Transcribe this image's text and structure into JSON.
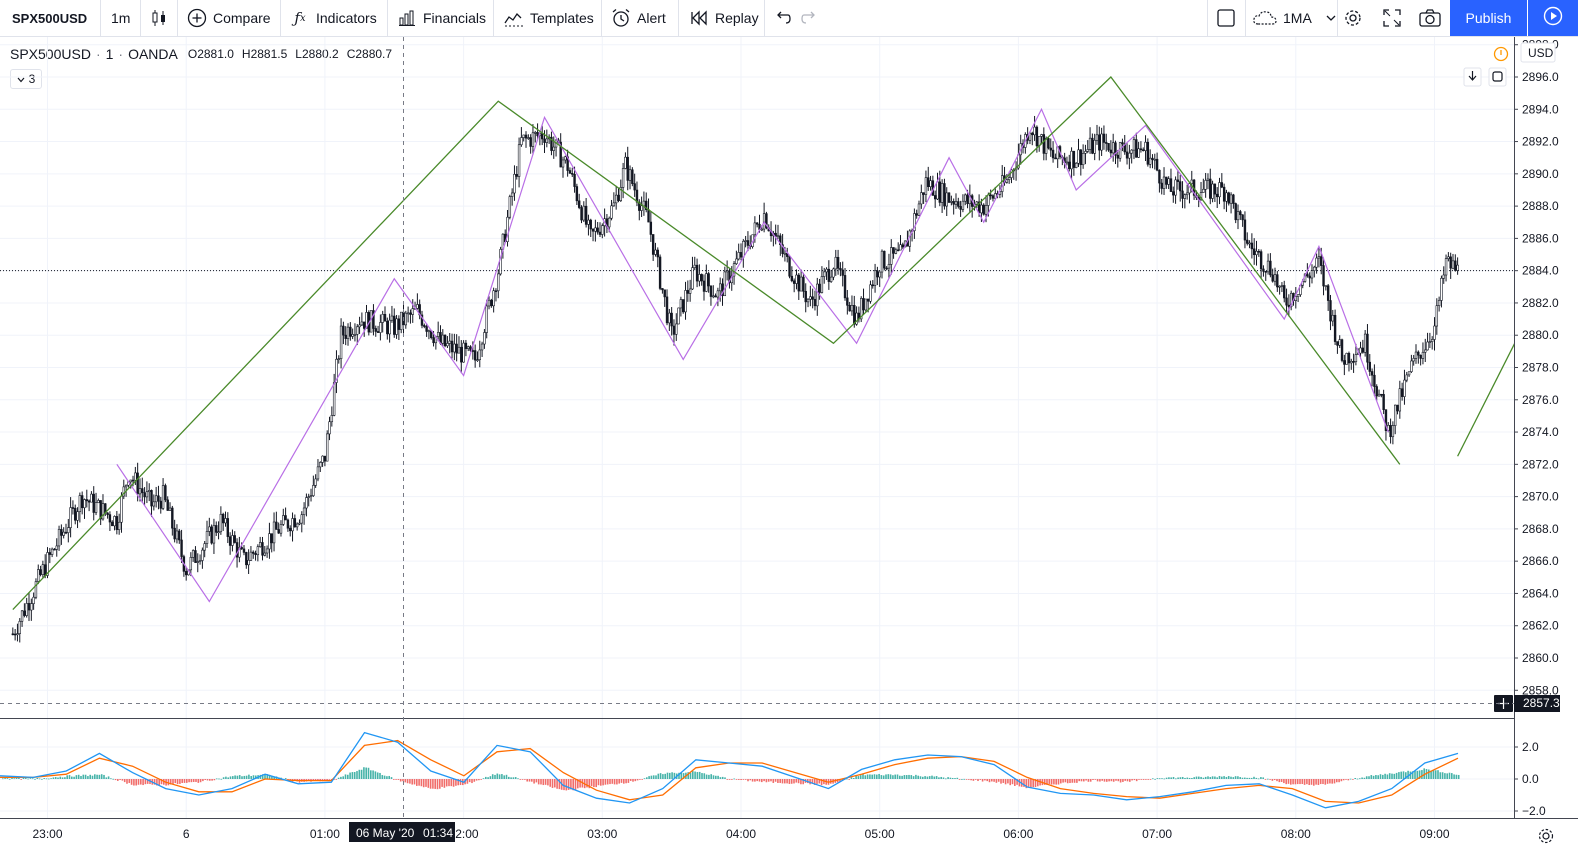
{
  "toolbar": {
    "symbol": "SPX500USD",
    "interval": "1m",
    "compare": "Compare",
    "indicators": "Indicators",
    "financials": "Financials",
    "templates": "Templates",
    "alert": "Alert",
    "replay": "Replay",
    "ma_label": "1MA",
    "publish": "Publish",
    "icons": [
      "candles-icon",
      "plus-circle-icon",
      "fx-icon",
      "financials-icon",
      "templates-icon",
      "alarm-icon",
      "replay-icon",
      "undo-icon",
      "redo-icon",
      "square-icon",
      "cloud-icon",
      "chevron-down-icon",
      "gear-icon",
      "fullscreen-icon",
      "camera-icon",
      "play-icon"
    ]
  },
  "legend": {
    "symbol": "SPX500USD",
    "dot1": "·",
    "interval": "1",
    "dot2": "·",
    "broker": "OANDA",
    "open": "O2881.0",
    "high": "H2881.5",
    "low": "L2880.2",
    "close": "C2880.7",
    "collapse_count": "3"
  },
  "price_axis": {
    "currency": "USD",
    "crosshair_price": "2857.3"
  },
  "time_axis": {
    "crosshair_time_label": "06 May '20",
    "crosshair_time_clock": "01:34"
  },
  "colors": {
    "bull": "#ffffff",
    "bear": "#131722",
    "zigzag_major": "#4a8a2a",
    "zigzag_minor": "#b96fe6",
    "macd_line": "#2196f3",
    "signal_line": "#ff6d00",
    "hist_pos": "#26a69a",
    "hist_neg": "#ef5350",
    "publish": "#2962ff"
  },
  "chart_data": [
    {
      "type": "candlestick",
      "symbol": "SPX500USD",
      "interval": "1m",
      "broker": "OANDA",
      "x_tick_labels": [
        "23:00",
        "6",
        "01:00",
        "02:00",
        "03:00",
        "04:00",
        "05:00",
        "06:00",
        "07:00",
        "08:00",
        "09:00"
      ],
      "y_tick_labels": [
        "2858.0",
        "2860.0",
        "2862.0",
        "2864.0",
        "2866.0",
        "2868.0",
        "2870.0",
        "2872.0",
        "2874.0",
        "2876.0",
        "2878.0",
        "2880.0",
        "2882.0",
        "2884.0",
        "2886.0",
        "2888.0",
        "2890.0",
        "2892.0",
        "2894.0",
        "2896.0",
        "2898.0"
      ],
      "ylim": [
        2857.3,
        2898.5
      ],
      "last_price_line": 2884.0,
      "price_anchors": [
        {
          "t": "22:45",
          "p": 2861.5
        },
        {
          "t": "23:00",
          "p": 2866.0
        },
        {
          "t": "23:15",
          "p": 2870.0
        },
        {
          "t": "23:30",
          "p": 2868.5
        },
        {
          "t": "23:35",
          "p": 2871.5
        },
        {
          "t": "23:45",
          "p": 2869.5
        },
        {
          "t": "23:50",
          "p": 2870.0
        },
        {
          "t": "00:00",
          "p": 2865.5
        },
        {
          "t": "00:15",
          "p": 2868.5
        },
        {
          "t": "00:25",
          "p": 2866.0
        },
        {
          "t": "00:40",
          "p": 2868.0
        },
        {
          "t": "00:50",
          "p": 2869.0
        },
        {
          "t": "01:00",
          "p": 2872.5
        },
        {
          "t": "01:07",
          "p": 2880.0
        },
        {
          "t": "01:15",
          "p": 2881.0
        },
        {
          "t": "01:30",
          "p": 2880.5
        },
        {
          "t": "01:40",
          "p": 2881.5
        },
        {
          "t": "01:50",
          "p": 2879.5
        },
        {
          "t": "02:05",
          "p": 2878.5
        },
        {
          "t": "02:15",
          "p": 2884.0
        },
        {
          "t": "02:25",
          "p": 2892.0
        },
        {
          "t": "02:35",
          "p": 2892.5
        },
        {
          "t": "02:45",
          "p": 2890.5
        },
        {
          "t": "02:55",
          "p": 2886.0
        },
        {
          "t": "03:05",
          "p": 2888.0
        },
        {
          "t": "03:10",
          "p": 2890.5
        },
        {
          "t": "03:20",
          "p": 2887.0
        },
        {
          "t": "03:30",
          "p": 2880.0
        },
        {
          "t": "03:40",
          "p": 2884.0
        },
        {
          "t": "03:50",
          "p": 2882.5
        },
        {
          "t": "04:00",
          "p": 2885.0
        },
        {
          "t": "04:10",
          "p": 2887.5
        },
        {
          "t": "04:20",
          "p": 2884.5
        },
        {
          "t": "04:30",
          "p": 2882.0
        },
        {
          "t": "04:40",
          "p": 2884.5
        },
        {
          "t": "04:50",
          "p": 2881.0
        },
        {
          "t": "05:00",
          "p": 2884.5
        },
        {
          "t": "05:10",
          "p": 2885.0
        },
        {
          "t": "05:20",
          "p": 2889.5
        },
        {
          "t": "05:30",
          "p": 2888.5
        },
        {
          "t": "05:45",
          "p": 2888.0
        },
        {
          "t": "05:55",
          "p": 2889.5
        },
        {
          "t": "06:05",
          "p": 2893.0
        },
        {
          "t": "06:15",
          "p": 2891.0
        },
        {
          "t": "06:25",
          "p": 2891.0
        },
        {
          "t": "06:35",
          "p": 2892.0
        },
        {
          "t": "06:45",
          "p": 2891.5
        },
        {
          "t": "06:55",
          "p": 2891.5
        },
        {
          "t": "07:05",
          "p": 2889.0
        },
        {
          "t": "07:15",
          "p": 2889.0
        },
        {
          "t": "07:30",
          "p": 2889.0
        },
        {
          "t": "07:40",
          "p": 2885.5
        },
        {
          "t": "07:50",
          "p": 2884.0
        },
        {
          "t": "07:55",
          "p": 2882.0
        },
        {
          "t": "08:10",
          "p": 2884.5
        },
        {
          "t": "08:20",
          "p": 2878.5
        },
        {
          "t": "08:30",
          "p": 2879.5
        },
        {
          "t": "08:40",
          "p": 2874.0
        },
        {
          "t": "08:50",
          "p": 2878.0
        },
        {
          "t": "09:00",
          "p": 2880.5
        },
        {
          "t": "09:05",
          "p": 2884.5
        },
        {
          "t": "09:10",
          "p": 2884.0
        }
      ],
      "zigzag_major": [
        {
          "t": "22:45",
          "p": 2863.0
        },
        {
          "t": "02:15",
          "p": 2894.5
        },
        {
          "t": "04:40",
          "p": 2879.5
        },
        {
          "t": "06:40",
          "p": 2896.0
        },
        {
          "t": "08:45",
          "p": 2872.0
        }
      ],
      "zigzag_major_tail": [
        {
          "t": "09:10",
          "p": 2872.5
        },
        {
          "t": "09:40",
          "p": 2881.0
        }
      ],
      "zigzag_minor": [
        {
          "t": "23:30",
          "p": 2872.0
        },
        {
          "t": "00:10",
          "p": 2863.5
        },
        {
          "t": "01:30",
          "p": 2883.5
        },
        {
          "t": "02:00",
          "p": 2877.5
        },
        {
          "t": "02:35",
          "p": 2893.5
        },
        {
          "t": "03:35",
          "p": 2878.5
        },
        {
          "t": "04:10",
          "p": 2887.0
        },
        {
          "t": "04:50",
          "p": 2879.5
        },
        {
          "t": "05:30",
          "p": 2891.0
        },
        {
          "t": "05:45",
          "p": 2887.0
        },
        {
          "t": "06:10",
          "p": 2894.0
        },
        {
          "t": "06:25",
          "p": 2889.0
        },
        {
          "t": "06:55",
          "p": 2893.0
        },
        {
          "t": "07:55",
          "p": 2881.0
        },
        {
          "t": "08:10",
          "p": 2885.5
        },
        {
          "t": "08:40",
          "p": 2874.0
        }
      ]
    },
    {
      "type": "line",
      "title": "",
      "y_tick_labels": [
        "2.0",
        "0.0",
        "−2.0"
      ],
      "ylim": [
        -2.6,
        3.0
      ],
      "series": [
        {
          "values": [
            0.2,
            0.1,
            0.5,
            1.6,
            0.4,
            -0.6,
            -1.0,
            -0.6,
            0.3,
            -0.3,
            -0.2,
            2.9,
            2.3,
            0.5,
            -0.2,
            2.1,
            1.7,
            -0.4,
            -1.2,
            -1.5,
            -0.6,
            1.2,
            1.0,
            0.8,
            0.1,
            -0.6,
            0.6,
            1.2,
            1.5,
            1.4,
            0.9,
            -0.5,
            -0.9,
            -1.0,
            -1.3,
            -1.1,
            -0.8,
            -0.4,
            -0.3,
            -1.0,
            -1.8,
            -1.4,
            -0.6,
            1.0,
            1.6
          ]
        },
        {
          "values": [
            0.1,
            0.1,
            0.3,
            1.3,
            0.8,
            -0.2,
            -0.8,
            -0.8,
            0.0,
            -0.1,
            -0.1,
            2.1,
            2.4,
            1.2,
            0.2,
            1.7,
            1.9,
            0.4,
            -0.7,
            -1.3,
            -1.0,
            0.7,
            1.0,
            1.0,
            0.4,
            -0.2,
            0.3,
            0.9,
            1.3,
            1.4,
            1.1,
            0.1,
            -0.6,
            -0.9,
            -1.1,
            -1.2,
            -0.9,
            -0.6,
            -0.4,
            -0.6,
            -1.4,
            -1.5,
            -1.0,
            0.3,
            1.3
          ]
        }
      ]
    }
  ]
}
